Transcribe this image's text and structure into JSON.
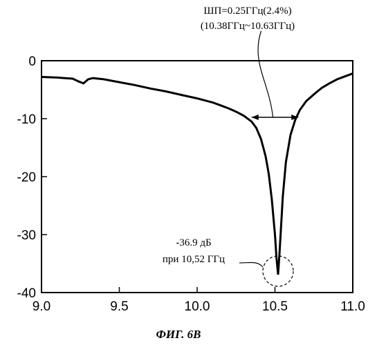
{
  "chart_data": {
    "type": "line",
    "xlim": [
      9.0,
      11.0
    ],
    "ylim": [
      -40,
      0
    ],
    "x_ticks": [
      "9.0",
      "9.5",
      "10.0",
      "10.5",
      "11.0"
    ],
    "y_ticks": [
      "0",
      "-10",
      "-20",
      "-30",
      "-40"
    ],
    "grid": false,
    "series": [
      {
        "x": [
          9.0,
          9.1,
          9.15,
          9.2,
          9.24,
          9.27,
          9.3,
          9.33,
          9.4,
          9.5,
          9.6,
          9.7,
          9.8,
          9.9,
          10.0,
          10.1,
          10.15,
          10.2,
          10.25,
          10.3,
          10.35,
          10.38,
          10.41,
          10.44,
          10.46,
          10.48,
          10.5,
          10.51,
          10.52,
          10.53,
          10.55,
          10.57,
          10.6,
          10.63,
          10.66,
          10.7,
          10.75,
          10.8,
          10.85,
          10.9,
          10.95,
          11.0
        ],
        "y": [
          -2.8,
          -2.9,
          -3.0,
          -3.1,
          -3.6,
          -3.9,
          -3.2,
          -3.0,
          -3.2,
          -3.7,
          -4.2,
          -4.8,
          -5.3,
          -5.9,
          -6.5,
          -7.2,
          -7.7,
          -8.2,
          -8.8,
          -9.5,
          -10.5,
          -11.6,
          -13.5,
          -16.5,
          -19.5,
          -24.0,
          -30.0,
          -34.0,
          -36.9,
          -33.0,
          -23.5,
          -17.5,
          -12.8,
          -10.2,
          -8.5,
          -7.0,
          -5.8,
          -4.7,
          -3.9,
          -3.2,
          -2.7,
          -2.2
        ]
      }
    ],
    "annotations": {
      "bandwidth_line1": "ШП=0.25ГГц(2.4%)",
      "bandwidth_line2": "(10.38ГГц~10.63ГГц)",
      "bandwidth_from": 10.35,
      "bandwidth_to": 10.65,
      "bandwidth_level": -10,
      "min_line1": "-36.9 дБ",
      "min_line2": "при 10,52 ГГц",
      "min_x": 10.52,
      "min_y": -36.9
    },
    "caption": "ФИГ. 6В"
  }
}
